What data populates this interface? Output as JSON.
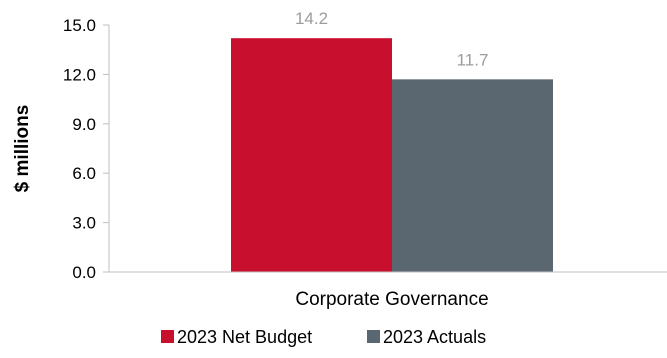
{
  "chart_data": {
    "type": "bar",
    "categories": [
      "Corporate Governance"
    ],
    "series": [
      {
        "name": "2023 Net Budget",
        "values": [
          14.2
        ],
        "color": "#c8102e"
      },
      {
        "name": "2023 Actuals",
        "values": [
          11.7
        ],
        "color": "#5b6770"
      }
    ],
    "data_labels": [
      "14.2",
      "11.7"
    ],
    "ylabel": "$ millions",
    "xlabel": "",
    "ylim": [
      0,
      15
    ],
    "yticks": [
      "0.0",
      "3.0",
      "6.0",
      "9.0",
      "12.0",
      "15.0"
    ],
    "grid": false,
    "legend_position": "bottom"
  }
}
